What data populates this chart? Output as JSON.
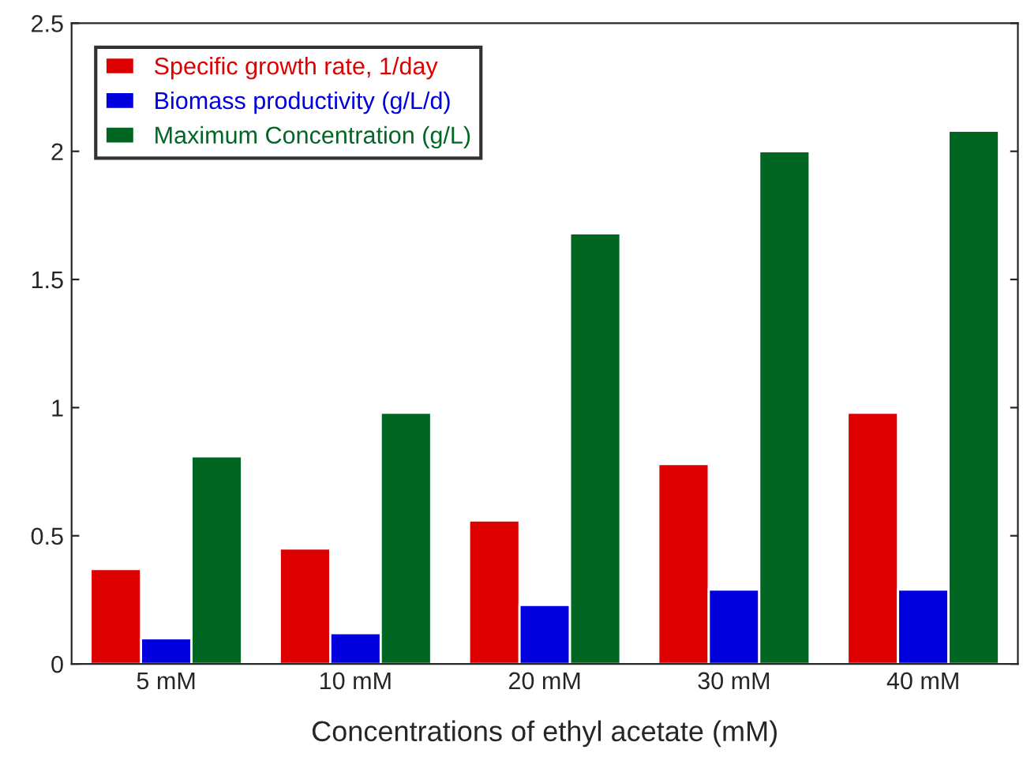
{
  "chart_data": {
    "type": "bar",
    "xlabel": "Concentrations of ethyl acetate (mM)",
    "categories": [
      "5 mM",
      "10 mM",
      "20 mM",
      "30 mM",
      "40 mM"
    ],
    "series": [
      {
        "name": "Specific growth rate, 1/day",
        "color": "#dd0000",
        "values": [
          0.37,
          0.45,
          0.56,
          0.78,
          0.98
        ]
      },
      {
        "name": "Biomass productivity (g/L/d)",
        "color": "#0000dd",
        "values": [
          0.1,
          0.12,
          0.23,
          0.29,
          0.29
        ]
      },
      {
        "name": "Maximum Concentration (g/L)",
        "color": "#006622",
        "values": [
          0.81,
          0.98,
          1.68,
          2.0,
          2.08
        ]
      }
    ],
    "ylim": [
      0,
      2.5
    ],
    "yticks": [
      0,
      0.5,
      1,
      1.5,
      2,
      2.5
    ],
    "grid": false,
    "legend": "top left"
  }
}
